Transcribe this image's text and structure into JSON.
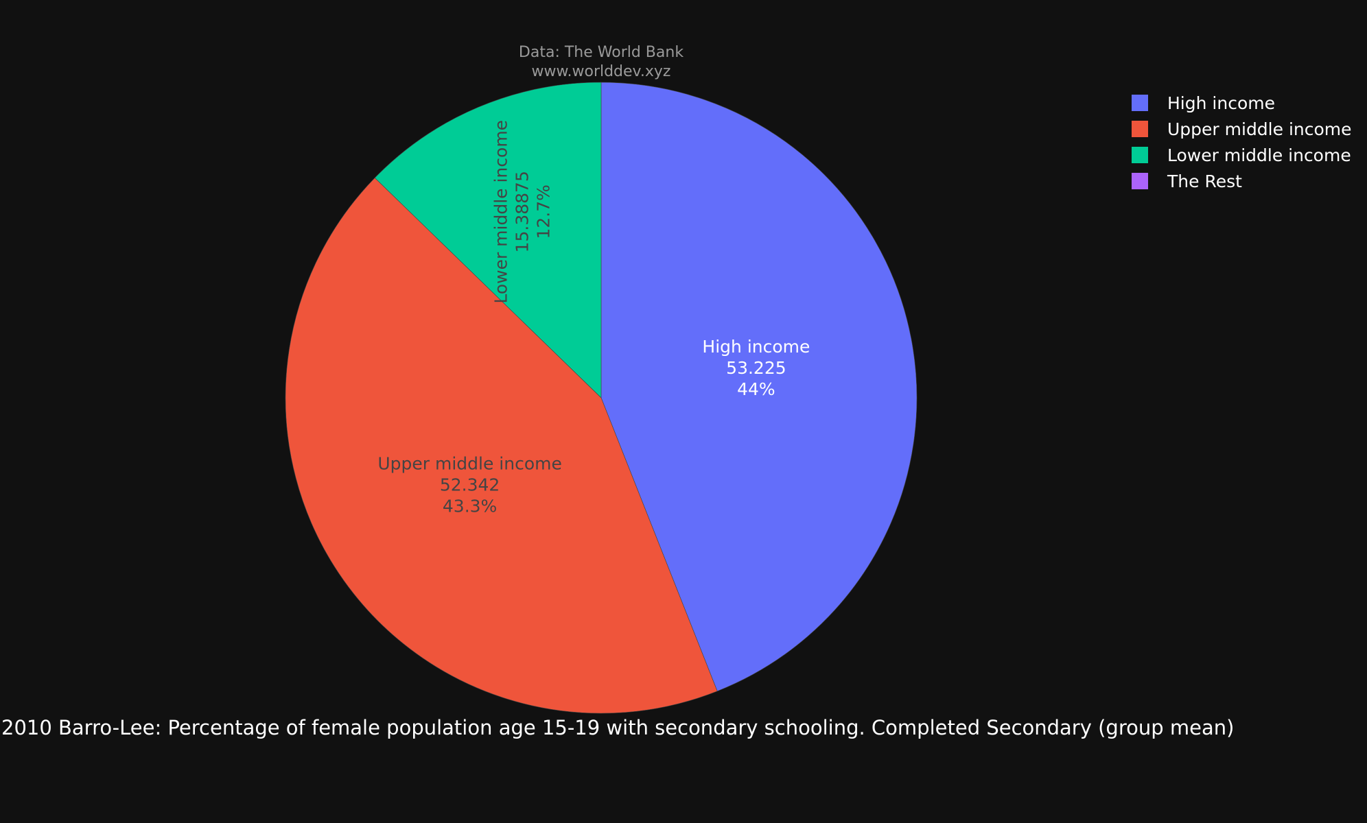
{
  "source": {
    "line1": "Data: The World Bank",
    "line2": "www.worlddev.xyz"
  },
  "caption": "2010 Barro-Lee: Percentage of female population age 15-19 with secondary schooling. Completed Secondary (group mean)",
  "chart_data": {
    "type": "pie",
    "title": "2010 Barro-Lee: Percentage of female population age 15-19 with secondary schooling. Completed Secondary (group mean)",
    "categories": [
      "High income",
      "Upper middle income",
      "Lower middle income",
      "The Rest"
    ],
    "values": [
      53.225,
      52.342,
      15.38875,
      0
    ],
    "value_labels": [
      "53.225",
      "52.342",
      "15.38875",
      ""
    ],
    "percent_labels": [
      "44%",
      "43.3%",
      "12.7%",
      ""
    ],
    "colors": [
      "#636efa",
      "#ef553b",
      "#00cc96",
      "#ab63fa"
    ],
    "label_colors": [
      "#ffffff",
      "#444444",
      "#444444",
      "#444444"
    ],
    "direction": "clockwise",
    "start": "top",
    "legend_position": "top-right"
  }
}
